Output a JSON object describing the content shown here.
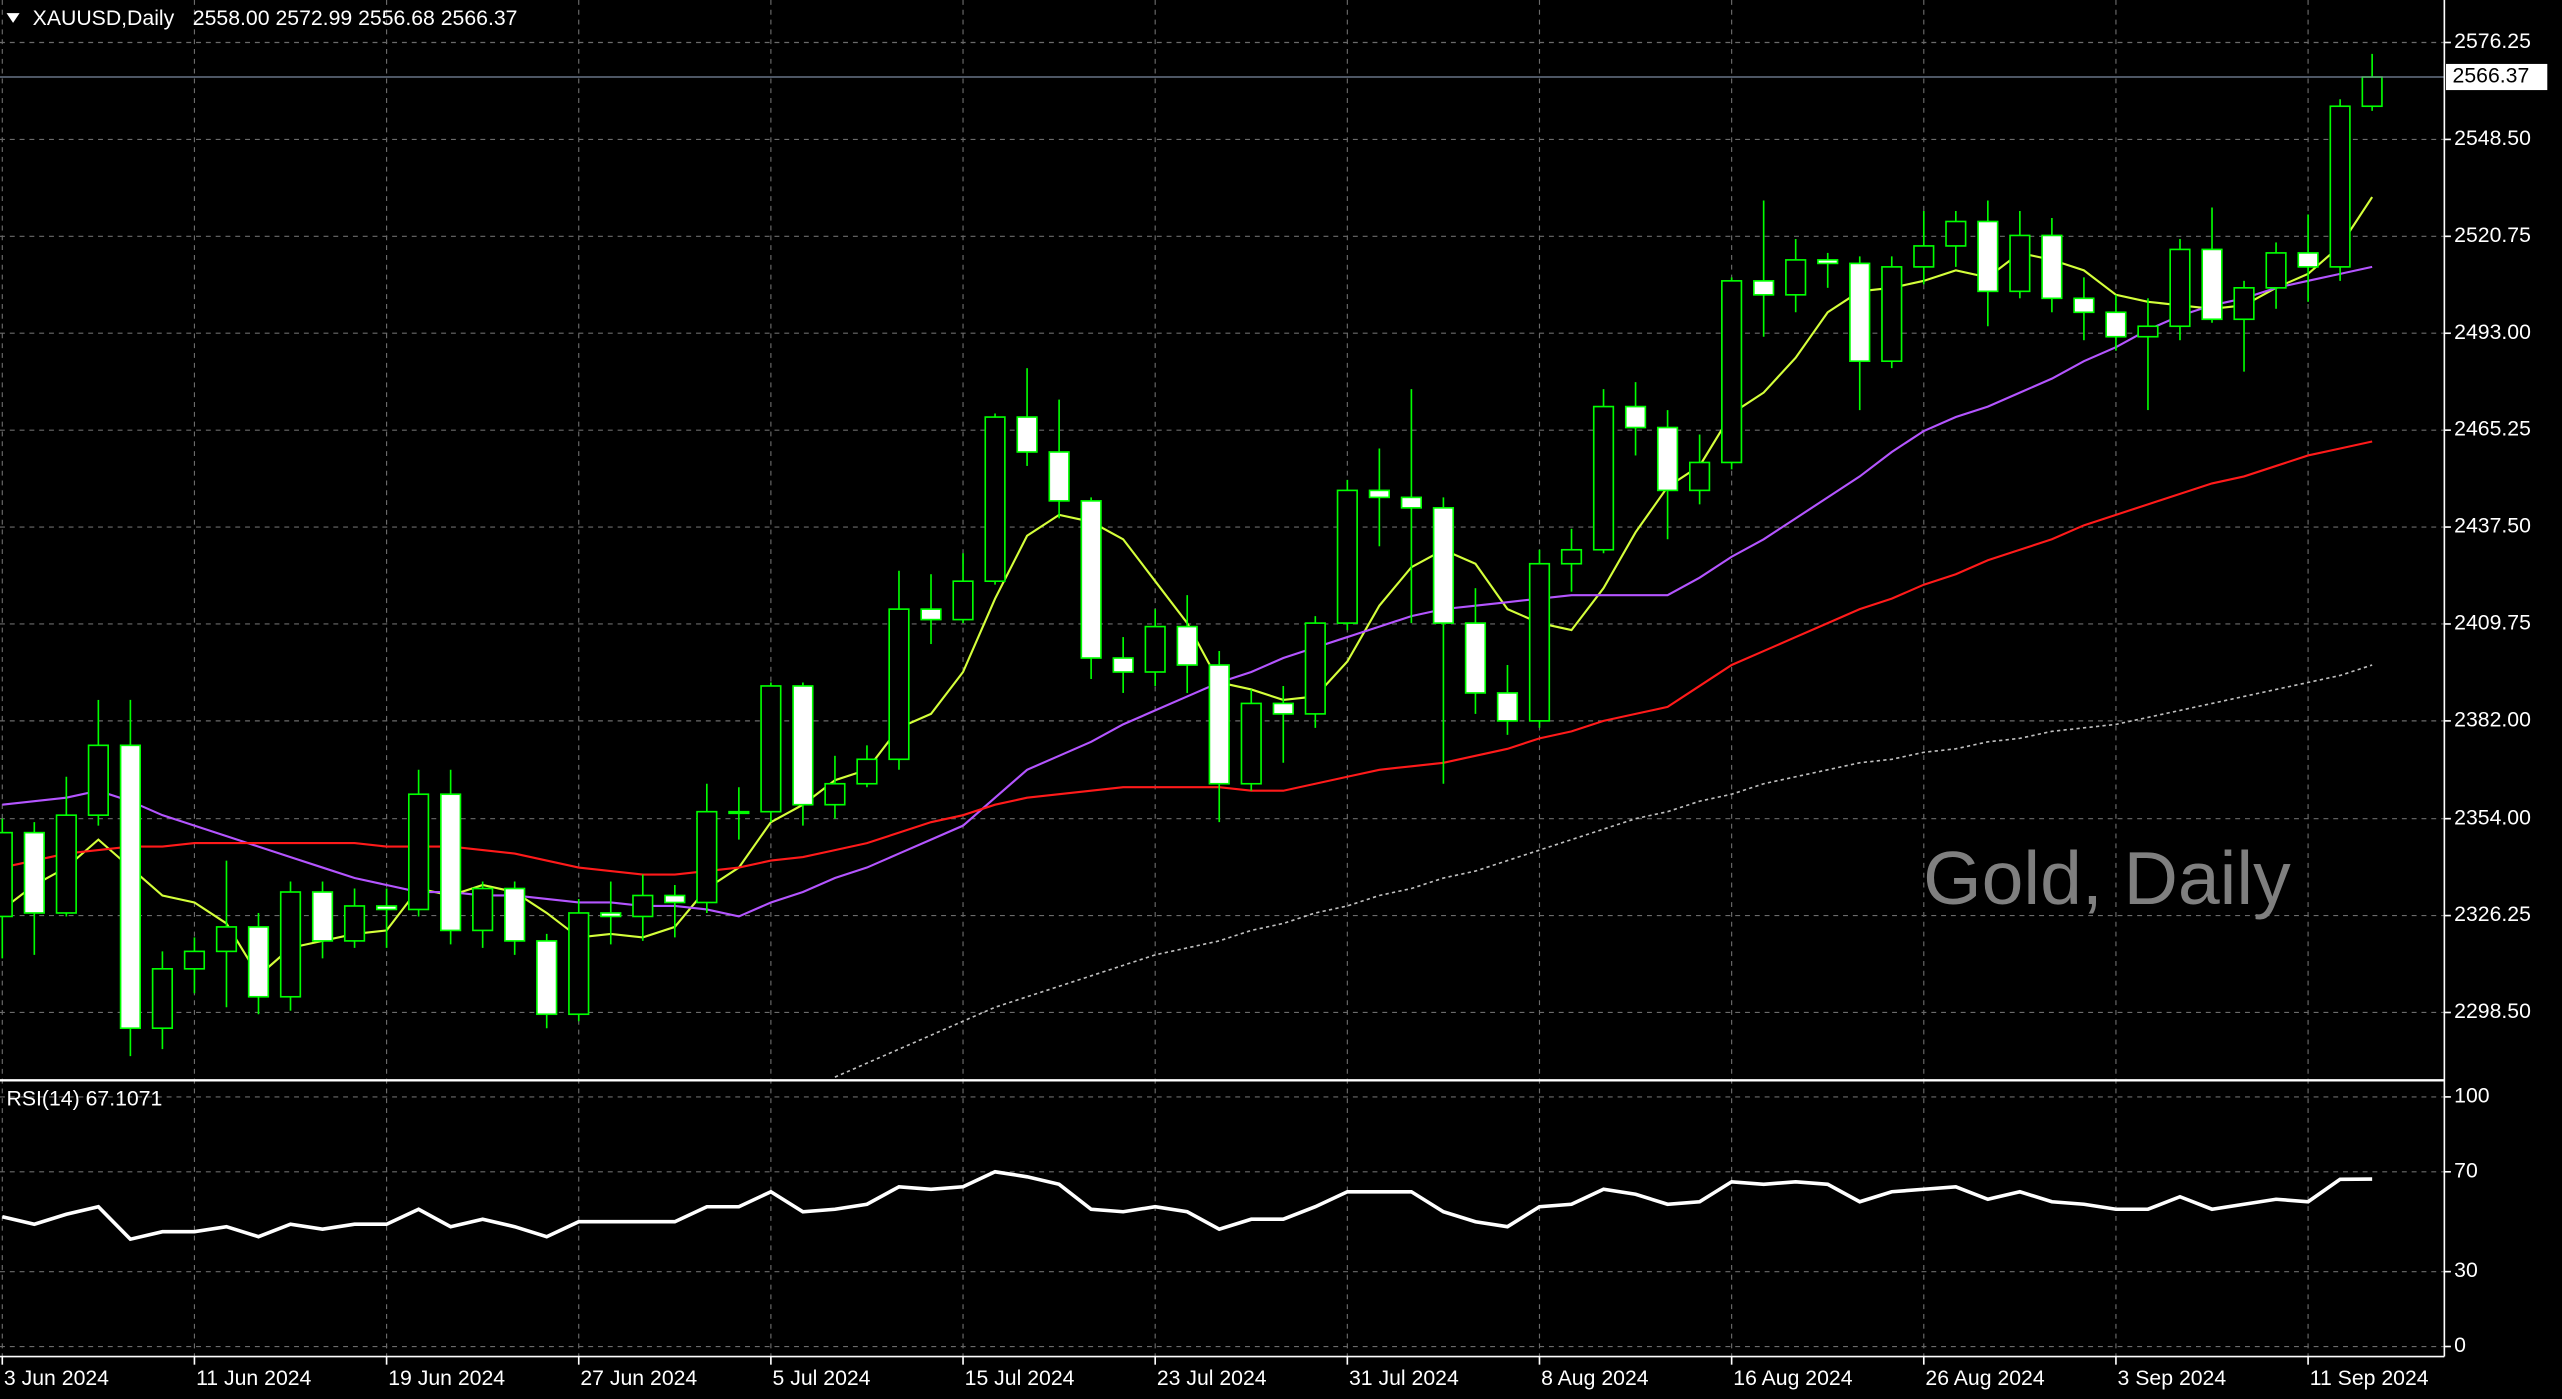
{
  "header": {
    "symbol": "XAUUSD,Daily",
    "ohlc": "2558.00 2572.99 2556.68 2566.37"
  },
  "watermark": "Gold, Daily",
  "current_price": {
    "value": 2566.37,
    "label": "2566.37"
  },
  "chart_data": [
    {
      "type": "candlestick",
      "categories": [
        "3 Jun 2024",
        null,
        null,
        null,
        null,
        null,
        "11 Jun 2024",
        null,
        null,
        null,
        null,
        null,
        "19 Jun 2024",
        null,
        null,
        null,
        null,
        null,
        "27 Jun 2024",
        null,
        null,
        null,
        null,
        null,
        "5 Jul 2024",
        null,
        null,
        null,
        null,
        null,
        "15 Jul 2024",
        null,
        null,
        null,
        null,
        null,
        "23 Jul 2024",
        null,
        null,
        null,
        null,
        null,
        "31 Jul 2024",
        null,
        null,
        null,
        null,
        null,
        "8 Aug 2024",
        null,
        null,
        null,
        null,
        null,
        "16 Aug 2024",
        null,
        null,
        null,
        null,
        null,
        "26 Aug 2024",
        null,
        null,
        null,
        null,
        null,
        "3 Sep 2024",
        null,
        null,
        null,
        null,
        null,
        "11 Sep 2024",
        null,
        null
      ],
      "open": [
        2326,
        2350,
        2327,
        2355,
        2375,
        2294,
        2311,
        2316,
        2323,
        2303,
        2333,
        2319,
        2329,
        2328,
        2361,
        2322,
        2334,
        2319,
        2298,
        2327,
        2326,
        2332,
        2330,
        2356,
        2356,
        2392,
        2358,
        2364,
        2371,
        2414,
        2411,
        2422,
        2469,
        2459,
        2445,
        2400,
        2396,
        2409,
        2398,
        2364,
        2387,
        2384,
        2410,
        2448,
        2446,
        2443,
        2410,
        2390,
        2382,
        2427,
        2431,
        2472,
        2466,
        2448,
        2456,
        2508,
        2504,
        2514,
        2513,
        2485,
        2512,
        2518,
        2525,
        2505,
        2521,
        2503,
        2499,
        2492,
        2495,
        2517,
        2497,
        2506,
        2516,
        2512,
        2558
      ],
      "high": [
        2354,
        2353,
        2366,
        2388,
        2388,
        2316,
        2320,
        2342,
        2327,
        2336,
        2336,
        2334,
        2334,
        2368,
        2368,
        2336,
        2336,
        2321,
        2331,
        2336,
        2338,
        2335,
        2364,
        2363,
        2393,
        2393,
        2372,
        2375,
        2425,
        2424,
        2430,
        2470,
        2483,
        2474,
        2446,
        2406,
        2414,
        2418,
        2402,
        2391,
        2392,
        2412,
        2451,
        2460,
        2477,
        2446,
        2420,
        2398,
        2431,
        2437,
        2477,
        2479,
        2471,
        2464,
        2509,
        2531,
        2520,
        2516,
        2515,
        2515,
        2528,
        2528,
        2531,
        2528,
        2526,
        2509,
        2504,
        2503,
        2520,
        2529,
        2508,
        2519,
        2527,
        2560,
        2572.99
      ],
      "low": [
        2314,
        2315,
        2326,
        2352,
        2286,
        2288,
        2304,
        2300,
        2298,
        2299,
        2314,
        2317,
        2317,
        2326,
        2318,
        2317,
        2315,
        2294,
        2296,
        2318,
        2319,
        2320,
        2327,
        2348,
        2353,
        2352,
        2354,
        2363,
        2368,
        2404,
        2410,
        2421,
        2455,
        2440,
        2394,
        2390,
        2392,
        2390,
        2353,
        2362,
        2370,
        2380,
        2408,
        2432,
        2410,
        2364,
        2384,
        2378,
        2380,
        2419,
        2430,
        2458,
        2434,
        2444,
        2454,
        2492,
        2499,
        2506,
        2471,
        2483,
        2507,
        2512,
        2495,
        2503,
        2499,
        2491,
        2488,
        2471,
        2491,
        2496,
        2482,
        2500,
        2502,
        2508,
        2556.68
      ],
      "close": [
        2350,
        2327,
        2355,
        2375,
        2294,
        2311,
        2316,
        2323,
        2303,
        2333,
        2319,
        2329,
        2328,
        2361,
        2322,
        2334,
        2319,
        2298,
        2327,
        2326,
        2332,
        2330,
        2356,
        2356,
        2392,
        2358,
        2364,
        2371,
        2414,
        2411,
        2422,
        2469,
        2459,
        2445,
        2400,
        2396,
        2409,
        2398,
        2364,
        2387,
        2384,
        2410,
        2448,
        2446,
        2443,
        2410,
        2390,
        2382,
        2427,
        2431,
        2472,
        2466,
        2448,
        2456,
        2508,
        2504,
        2514,
        2513,
        2485,
        2512,
        2518,
        2525,
        2505,
        2521,
        2503,
        2499,
        2492,
        2495,
        2517,
        2497,
        2506,
        2516,
        2512,
        2558,
        2566.37
      ],
      "up_color": "#000000",
      "down_color": "#ffffff",
      "outline_color": "#00ff00",
      "series": [
        {
          "color": "#d4ff3a",
          "style": "solid",
          "values": [
            2328,
            2335,
            2340,
            2348,
            2340,
            2332,
            2330,
            2324,
            2309,
            2317,
            2319,
            2321,
            2322,
            2334,
            2332,
            2335,
            2333,
            2327,
            2320,
            2321,
            2320,
            2323,
            2334,
            2340,
            2353,
            2358,
            2365,
            2368,
            2380,
            2384,
            2396,
            2417,
            2435,
            2441,
            2439,
            2434,
            2422,
            2410,
            2393,
            2391,
            2388,
            2389,
            2399,
            2415,
            2426,
            2431,
            2427,
            2414,
            2410,
            2408,
            2420,
            2436,
            2449,
            2455,
            2470,
            2476,
            2486,
            2499,
            2505,
            2506,
            2508,
            2511,
            2509,
            2516,
            2514,
            2511,
            2504,
            2502,
            2501,
            2500,
            2501,
            2506,
            2510,
            2518,
            2532
          ]
        },
        {
          "color": "#b455ff",
          "style": "solid",
          "values": [
            2358,
            2359,
            2360,
            2362,
            2359,
            2355,
            2352,
            2349,
            2346,
            2343,
            2340,
            2337,
            2335,
            2333,
            2333,
            2332,
            2332,
            2331,
            2330,
            2330,
            2329,
            2329,
            2328,
            2326,
            2330,
            2333,
            2337,
            2340,
            2344,
            2348,
            2352,
            2360,
            2368,
            2372,
            2376,
            2381,
            2385,
            2389,
            2393,
            2396,
            2400,
            2403,
            2406,
            2409,
            2412,
            2414,
            2415,
            2416,
            2417,
            2418,
            2418,
            2418,
            2418,
            2423,
            2429,
            2434,
            2440,
            2446,
            2452,
            2459,
            2465,
            2469,
            2472,
            2476,
            2480,
            2485,
            2489,
            2494,
            2498,
            2501,
            2503,
            2506,
            2508,
            2510,
            2512
          ]
        },
        {
          "color": "#ff1a1a",
          "style": "solid",
          "values": [
            2340,
            2342,
            2344,
            2345,
            2346,
            2346,
            2347,
            2347,
            2347,
            2347,
            2347,
            2347,
            2346,
            2346,
            2346,
            2345,
            2344,
            2342,
            2340,
            2339,
            2338,
            2338,
            2339,
            2340,
            2342,
            2343,
            2345,
            2347,
            2350,
            2353,
            2355,
            2358,
            2360,
            2361,
            2362,
            2363,
            2363,
            2363,
            2363,
            2362,
            2362,
            2364,
            2366,
            2368,
            2369,
            2370,
            2372,
            2374,
            2377,
            2379,
            2382,
            2384,
            2386,
            2392,
            2398,
            2402,
            2406,
            2410,
            2414,
            2417,
            2421,
            2424,
            2428,
            2431,
            2434,
            2438,
            2441,
            2444,
            2447,
            2450,
            2452,
            2455,
            2458,
            2460,
            2462
          ]
        },
        {
          "color": "#bfbfbf",
          "style": "dotted",
          "values": [
            null,
            null,
            null,
            null,
            null,
            null,
            null,
            null,
            null,
            null,
            null,
            null,
            null,
            null,
            null,
            null,
            null,
            null,
            null,
            null,
            null,
            null,
            null,
            null,
            null,
            null,
            2280,
            2284,
            2288,
            2292,
            2296,
            2300,
            2303,
            2306,
            2309,
            2312,
            2315,
            2317,
            2319,
            2322,
            2324,
            2327,
            2329,
            2332,
            2334,
            2337,
            2339,
            2342,
            2345,
            2348,
            2351,
            2354,
            2356,
            2359,
            2361,
            2364,
            2366,
            2368,
            2370,
            2371,
            2373,
            2374,
            2376,
            2377,
            2379,
            2380,
            2381,
            2383,
            2385,
            2387,
            2389,
            2391,
            2393,
            2395,
            2398
          ]
        }
      ],
      "ylim": [
        2279.55,
        2588.42
      ],
      "yticks": [
        {
          "value": 2576.25,
          "label": "2576.25"
        },
        {
          "value": 2548.5,
          "label": "2548.50"
        },
        {
          "value": 2520.75,
          "label": "2520.75"
        },
        {
          "value": 2493,
          "label": "2493.00"
        },
        {
          "value": 2465.25,
          "label": "2465.25"
        },
        {
          "value": 2437.5,
          "label": "2437.50"
        },
        {
          "value": 2409.75,
          "label": "2409.75"
        },
        {
          "value": 2382,
          "label": "2382.00"
        },
        {
          "value": 2354,
          "label": "2354.00"
        },
        {
          "value": 2326.25,
          "label": "2326.25"
        },
        {
          "value": 2298.5,
          "label": "2298.50"
        }
      ],
      "grid": true
    },
    {
      "type": "line",
      "title": "RSI(14) 67.1071",
      "series": [
        {
          "color": "#ffffff",
          "values": [
            52,
            49,
            53,
            56,
            43,
            46,
            46,
            48,
            44,
            49,
            47,
            49,
            49,
            55,
            48,
            51,
            48,
            44,
            50,
            50,
            50,
            50,
            56,
            56,
            62,
            54,
            55,
            57,
            64,
            63,
            64,
            70,
            68,
            65,
            55,
            54,
            56,
            54,
            47,
            51,
            51,
            56,
            62,
            62,
            62,
            54,
            50,
            48,
            56,
            57,
            63,
            61,
            57,
            58,
            66,
            65,
            66,
            65,
            58,
            62,
            63,
            64,
            59,
            62,
            58,
            57,
            55,
            55,
            60,
            55,
            57,
            59,
            58,
            67,
            67.1071
          ]
        }
      ],
      "ylim": [
        -4,
        106
      ],
      "yticks": [
        100,
        70,
        30,
        0
      ],
      "grid": true
    }
  ]
}
